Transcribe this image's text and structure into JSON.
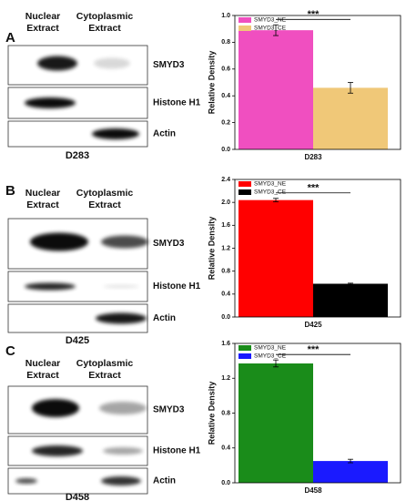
{
  "panels": [
    {
      "label": "A",
      "lane_headers": [
        [
          "Nuclear",
          "Extract"
        ],
        [
          "Cytoplasmic",
          "Extract"
        ]
      ],
      "bands": [
        "SMYD3",
        "Histone H1",
        "Actin"
      ],
      "sample": "D283"
    },
    {
      "label": "B",
      "lane_headers": [
        [
          "Nuclear",
          "Extract"
        ],
        [
          "Cytoplasmic",
          "Extract"
        ]
      ],
      "bands": [
        "SMYD3",
        "Histone H1",
        "Actin"
      ],
      "sample": "D425"
    },
    {
      "label": "C",
      "lane_headers": [
        [
          "Nuclear",
          "Extract"
        ],
        [
          "Cytoplasmic",
          "Extract"
        ]
      ],
      "bands": [
        "SMYD3",
        "Histone H1",
        "Actin"
      ],
      "sample": "D458"
    }
  ],
  "chart_data": [
    {
      "type": "bar",
      "y_label": "Relative Density",
      "categories": [
        "D283"
      ],
      "annotation": "***",
      "series": [
        {
          "name": "SMYD3_NE",
          "color": "#f04fc0",
          "values": [
            0.89
          ],
          "errors": [
            0.04
          ]
        },
        {
          "name": "SMYD3_CE",
          "color": "#f0c878",
          "values": [
            0.46
          ],
          "errors": [
            0.04
          ]
        }
      ],
      "ylim": [
        0,
        1.0
      ],
      "yticks": [
        {
          "value": 0,
          "label": "0.0"
        },
        0.2,
        0.4,
        0.6,
        0.8,
        {
          "value": 1.0,
          "label": "1.0"
        }
      ]
    },
    {
      "type": "bar",
      "y_label": "Relative Density",
      "categories": [
        "D425"
      ],
      "annotation": "***",
      "series": [
        {
          "name": "SMYD3_NE",
          "color": "#ff0000",
          "values": [
            2.04
          ],
          "errors": [
            0.03
          ]
        },
        {
          "name": "SMYD3_CE",
          "color": "#000000",
          "values": [
            0.58
          ],
          "errors": [
            0.01
          ]
        }
      ],
      "ylim": [
        0,
        2.4
      ],
      "yticks": [
        {
          "value": 0,
          "label": "0.0"
        },
        0.4,
        0.8,
        1.2,
        1.6,
        {
          "value": 2.0,
          "label": "2.0"
        },
        2.4
      ]
    },
    {
      "type": "bar",
      "y_label": "Relative Density",
      "categories": [
        "D458"
      ],
      "annotation": "***",
      "series": [
        {
          "name": "SMYD3_NE",
          "color": "#1a8c1a",
          "values": [
            1.37
          ],
          "errors": [
            0.04
          ]
        },
        {
          "name": "SMYD3_CE",
          "color": "#1a1aff",
          "values": [
            0.25
          ],
          "errors": [
            0.02
          ]
        }
      ],
      "ylim": [
        0,
        1.6
      ],
      "yticks": [
        {
          "value": 0,
          "label": "0.0"
        },
        0.4,
        0.8,
        1.2,
        1.6
      ]
    }
  ]
}
